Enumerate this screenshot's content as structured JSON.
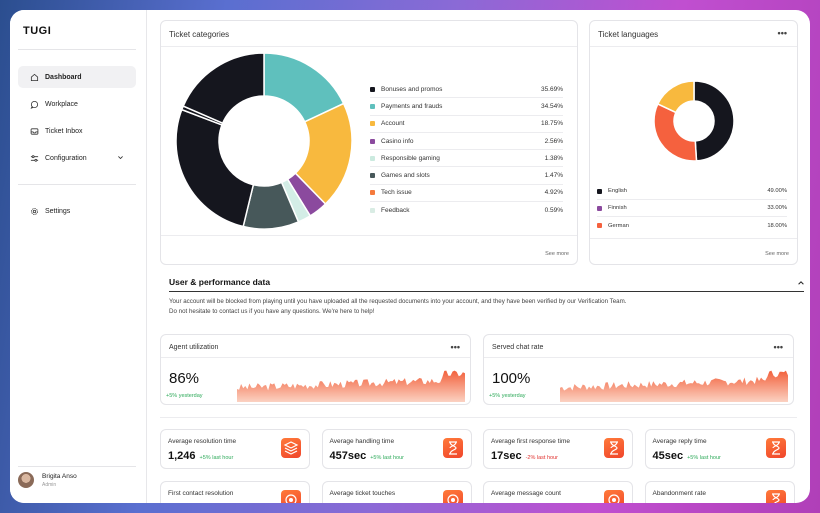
{
  "app": {
    "logo": "TUGI"
  },
  "sidebar": {
    "items": [
      {
        "label": "Dashboard",
        "icon": "home-icon",
        "active": true
      },
      {
        "label": "Workplace",
        "icon": "chat-icon"
      },
      {
        "label": "Ticket Inbox",
        "icon": "inbox-icon"
      },
      {
        "label": "Configuration",
        "icon": "sliders-icon",
        "has_dropdown": true
      }
    ],
    "settings": {
      "label": "Settings",
      "icon": "gear-icon"
    },
    "user": {
      "name": "Brigita Anso",
      "role": "Admin"
    }
  },
  "ticket_categories": {
    "title": "Ticket categories",
    "see_more": "See more",
    "chart_data": {
      "type": "pie",
      "categories": [
        "Bonuses and promos",
        "Payments and frauds",
        "Account",
        "Casino info",
        "Responsible gaming",
        "Games and slots",
        "Tech issue",
        "Feedback"
      ],
      "values": [
        35.69,
        34.54,
        18.75,
        2.56,
        1.38,
        1.47,
        4.92,
        0.59
      ],
      "labels": [
        "35.69%",
        "34.54%",
        "18.75%",
        "2.56%",
        "1.38%",
        "1.47%",
        "4.92%",
        "0.59%"
      ],
      "colors": [
        "#15161e",
        "#5fc0bd",
        "#f8b93e",
        "#8b4a9e",
        "#cbeadf",
        "#47585a",
        "#f57a3c",
        "#d9ece4"
      ],
      "slice_values": [
        18.0,
        19.7,
        3.5,
        2.4,
        10.2,
        27.0,
        0.7,
        18.5
      ],
      "slice_colors": [
        "#5fc0bd",
        "#f8b93e",
        "#8b4a9e",
        "#d3ede6",
        "#47585a",
        "#15161e",
        "#15161e",
        "#15161e"
      ]
    }
  },
  "ticket_languages": {
    "title": "Ticket languages",
    "see_more": "See more",
    "chart_data": {
      "type": "pie",
      "categories": [
        "English",
        "Finnish",
        "German"
      ],
      "values": [
        49.0,
        33.0,
        18.0
      ],
      "labels": [
        "49.00%",
        "33.00%",
        "18.00%"
      ],
      "colors": [
        "#15161e",
        "#8b4a9e",
        "#f5613e"
      ],
      "slice_values": [
        49.0,
        33.0,
        18.0
      ],
      "slice_colors": [
        "#15161e",
        "#f5613e",
        "#f8b93e"
      ]
    }
  },
  "performance": {
    "title": "User & performance data",
    "notice_line1": "Your account will be blocked from playing until you have uploaded all the requested documents into your account, and they have been verified by our Verification Team.",
    "notice_line2": "Do not hesitate to contact us if you have any questions. We're here to help!",
    "agent_utilization": {
      "title": "Agent utilization",
      "value": "86%",
      "delta": "+5% yesterday"
    },
    "served_chat_rate": {
      "title": "Served chat rate",
      "value": "100%",
      "delta": "+5% yesterday"
    },
    "metrics": [
      {
        "title": "Average resolution time",
        "value": "1,246",
        "delta": "+5% last hour",
        "trend": "up",
        "icon": "layers-icon"
      },
      {
        "title": "Average handling time",
        "value": "457sec",
        "delta": "+5% last hour",
        "trend": "up",
        "icon": "hourglass-icon"
      },
      {
        "title": "Average first response time",
        "value": "17sec",
        "delta": "-2% last hour",
        "trend": "down",
        "icon": "hourglass-icon"
      },
      {
        "title": "Average reply time",
        "value": "45sec",
        "delta": "+5% last hour",
        "trend": "up",
        "icon": "hourglass-icon"
      },
      {
        "title": "First contact resolution",
        "icon": "target-icon"
      },
      {
        "title": "Average ticket touches",
        "icon": "target-icon"
      },
      {
        "title": "Average message count",
        "icon": "target-icon"
      },
      {
        "title": "Abandonment rate",
        "icon": "hourglass-icon"
      }
    ]
  }
}
